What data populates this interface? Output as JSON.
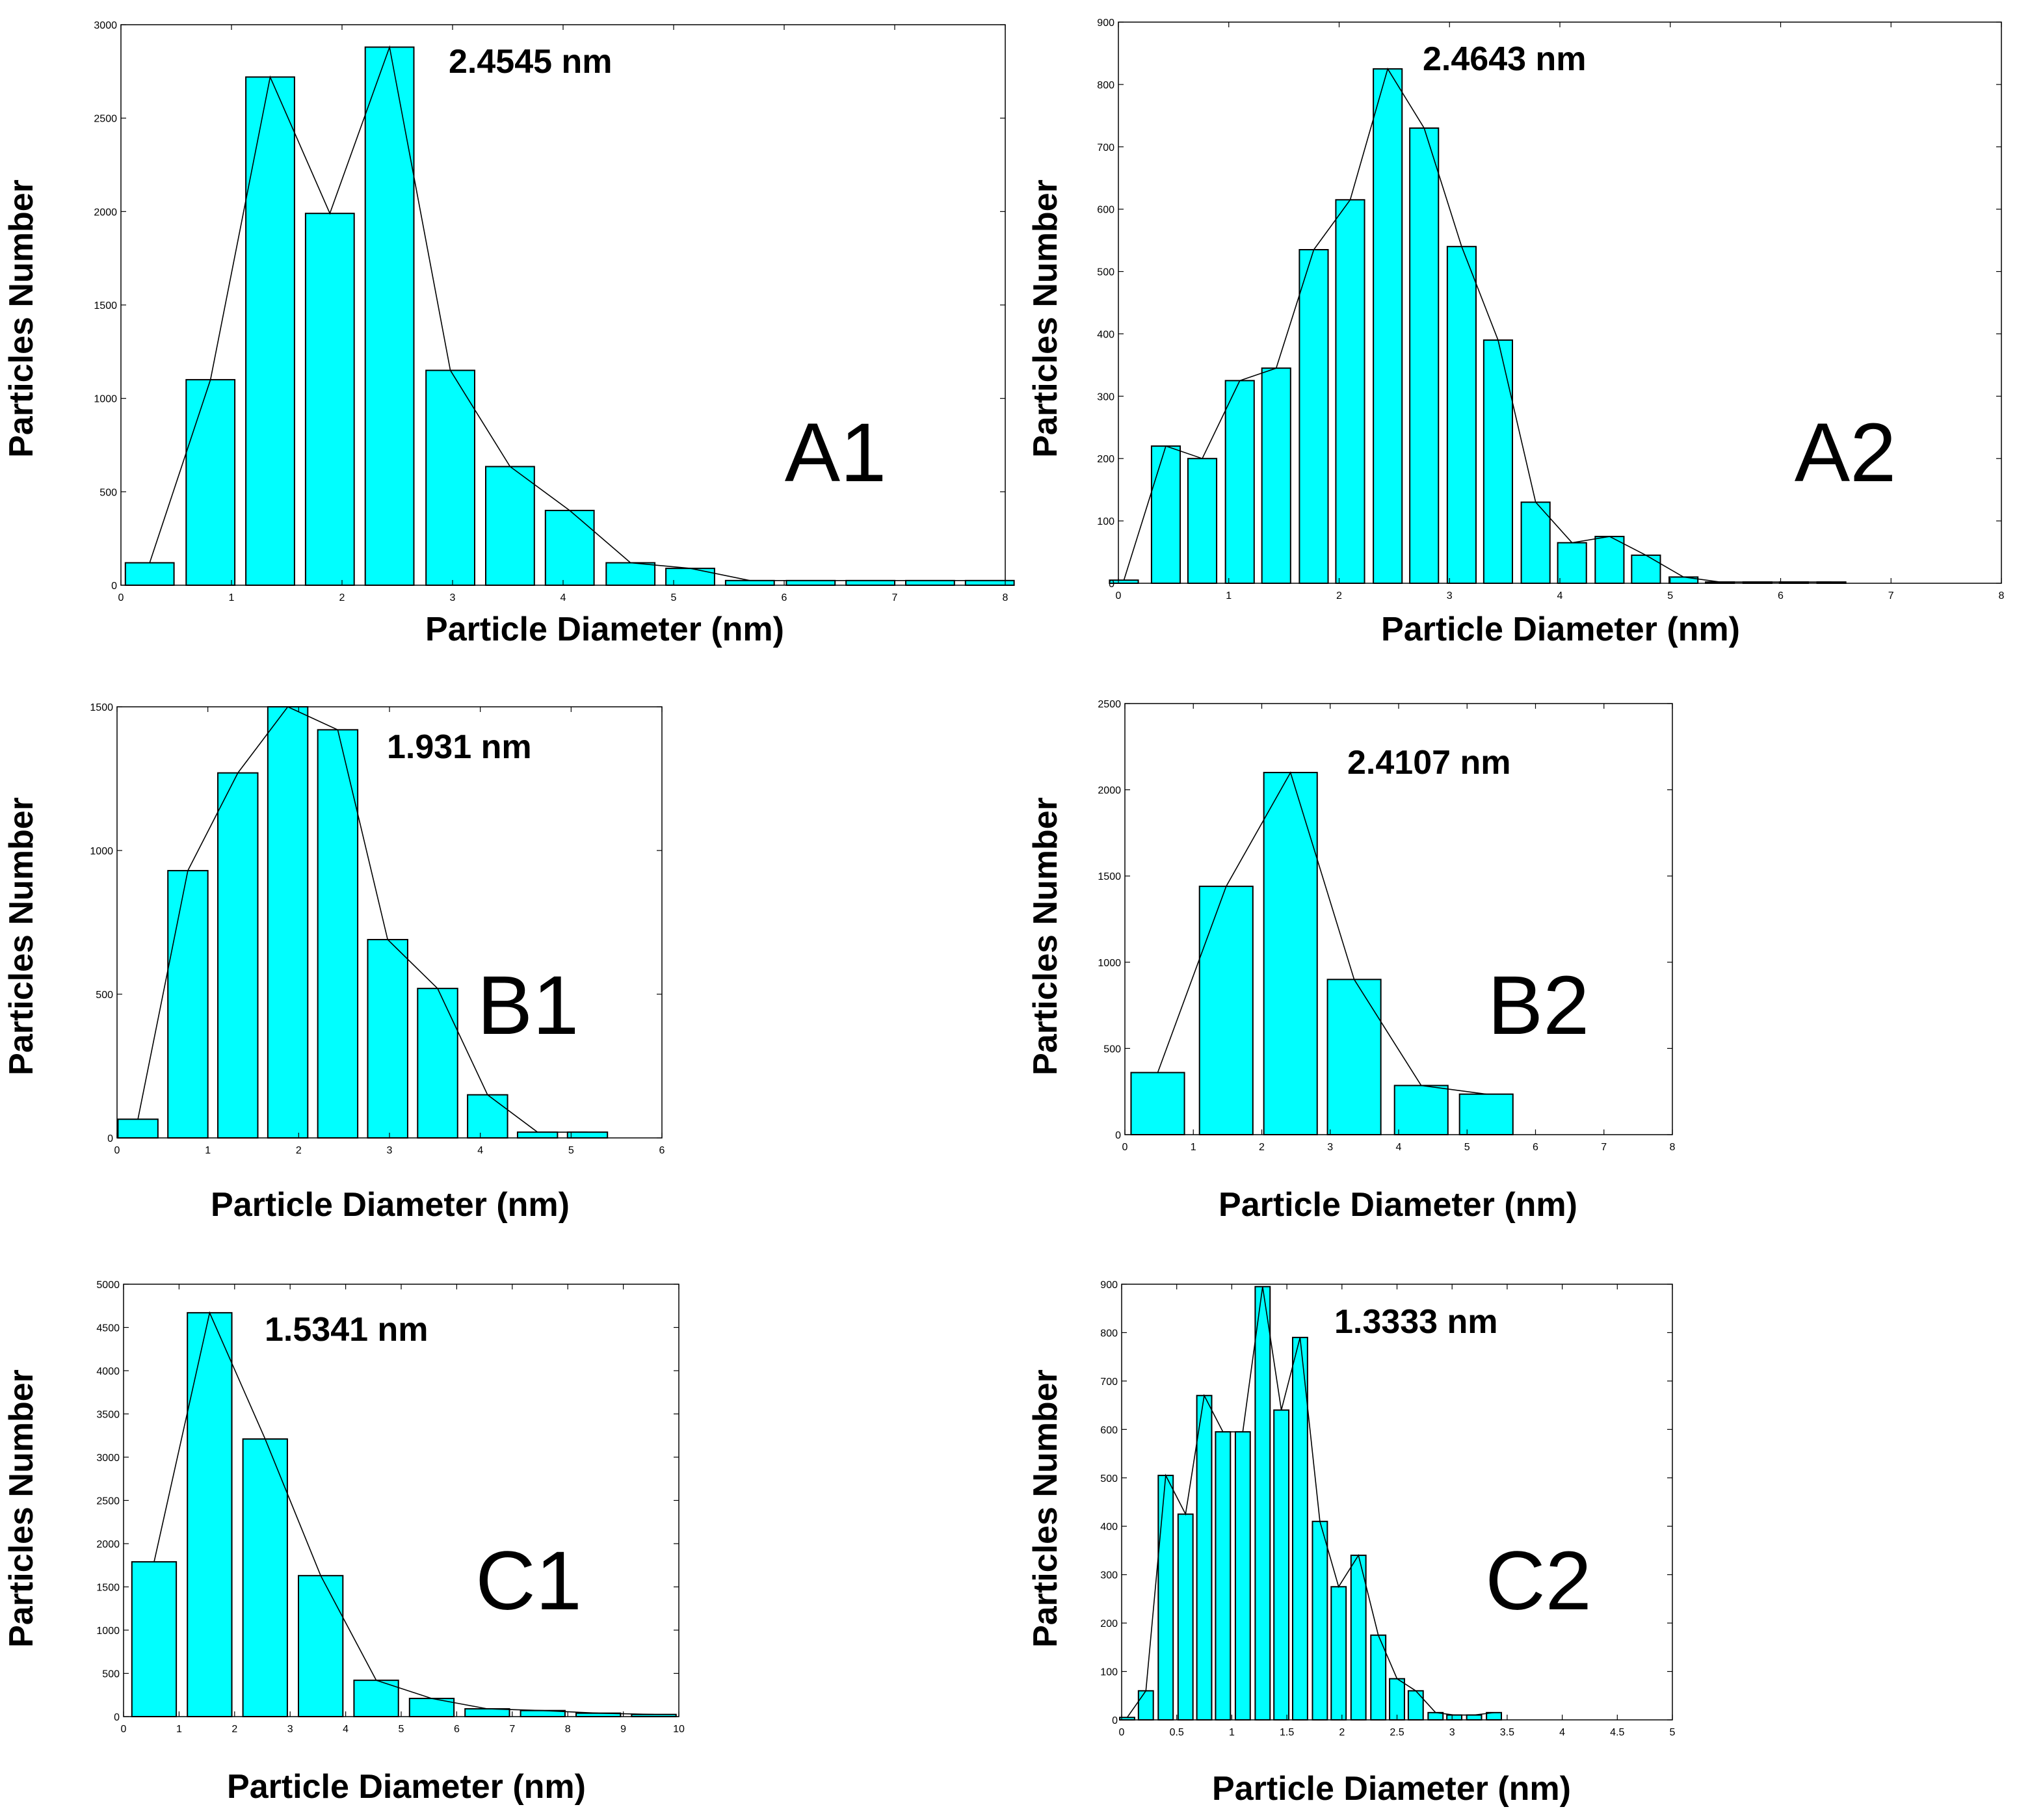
{
  "figure": {
    "bar_color": "#00FFFF",
    "edge_color": "#000000",
    "line_color": "#000000"
  },
  "chart_data": [
    {
      "type": "bar",
      "panel": "A1",
      "annotation": "2.4545 nm",
      "xlabel": "Particle Diameter (nm)",
      "ylabel": "Particles Number",
      "xlim": [
        0,
        8
      ],
      "ylim": [
        0,
        3000
      ],
      "xticks": [
        0,
        1,
        2,
        3,
        4,
        5,
        6,
        7,
        8
      ],
      "yticks": [
        0,
        500,
        1000,
        1500,
        2000,
        2500,
        3000
      ],
      "bar_width": 0.44,
      "x": [
        0.26,
        0.81,
        1.35,
        1.89,
        2.43,
        2.98,
        3.52,
        4.06,
        4.61,
        5.15,
        5.69,
        6.24,
        6.78,
        7.32,
        7.86
      ],
      "values": [
        120,
        1100,
        2720,
        1990,
        2880,
        1150,
        635,
        400,
        120,
        90,
        25,
        25,
        25,
        25,
        25
      ],
      "line": true
    },
    {
      "type": "bar",
      "panel": "A2",
      "annotation": "2.4643 nm",
      "xlabel": "Particle Diameter (nm)",
      "ylabel": "Particles Number",
      "xlim": [
        0,
        8
      ],
      "ylim": [
        0,
        900
      ],
      "xticks": [
        0,
        1,
        2,
        3,
        4,
        5,
        6,
        7,
        8
      ],
      "yticks": [
        0,
        100,
        200,
        300,
        400,
        500,
        600,
        700,
        800,
        900
      ],
      "bar_width": 0.26,
      "x": [
        0.05,
        0.43,
        0.76,
        1.1,
        1.43,
        1.77,
        2.1,
        2.44,
        2.77,
        3.11,
        3.44,
        3.78,
        4.11,
        4.45,
        4.78,
        5.12,
        5.45,
        5.79,
        6.12,
        6.46
      ],
      "values": [
        5,
        220,
        200,
        325,
        345,
        535,
        615,
        825,
        730,
        540,
        390,
        130,
        65,
        75,
        45,
        10,
        2,
        2,
        2,
        2
      ],
      "line": true
    },
    {
      "type": "bar",
      "panel": "B1",
      "annotation": "1.931 nm",
      "xlabel": "Particle Diameter (nm)",
      "ylabel": "Particles Number",
      "xlim": [
        0,
        6
      ],
      "ylim": [
        0,
        1500
      ],
      "xticks": [
        0,
        1,
        2,
        3,
        4,
        5,
        6
      ],
      "yticks": [
        0,
        500,
        1000,
        1500
      ],
      "bar_width": 0.44,
      "x": [
        0.23,
        0.78,
        1.33,
        1.88,
        2.43,
        2.98,
        3.53,
        4.08,
        4.63,
        5.18
      ],
      "values": [
        65,
        930,
        1270,
        1500,
        1420,
        690,
        520,
        150,
        20,
        20
      ],
      "line": true
    },
    {
      "type": "bar",
      "panel": "B2",
      "annotation": "2.4107 nm",
      "xlabel": "Particle Diameter (nm)",
      "ylabel": "Particles Number",
      "xlim": [
        0,
        8
      ],
      "ylim": [
        0,
        2500
      ],
      "xticks": [
        0,
        1,
        2,
        3,
        4,
        5,
        6,
        7,
        8
      ],
      "yticks": [
        0,
        500,
        1000,
        1500,
        2000,
        2500
      ],
      "bar_width": 0.78,
      "x": [
        0.48,
        1.48,
        2.42,
        3.35,
        4.33,
        5.28
      ],
      "values": [
        360,
        1440,
        2100,
        900,
        285,
        235
      ],
      "line": true
    },
    {
      "type": "bar",
      "panel": "C1",
      "annotation": "1.5341 nm",
      "xlabel": "Particle Diameter (nm)",
      "ylabel": "Particles Number",
      "xlim": [
        0,
        10
      ],
      "ylim": [
        0,
        5000
      ],
      "xticks": [
        0,
        1,
        2,
        3,
        4,
        5,
        6,
        7,
        8,
        9,
        10
      ],
      "yticks": [
        0,
        500,
        1000,
        1500,
        2000,
        2500,
        3000,
        3500,
        4000,
        4500,
        5000
      ],
      "bar_width": 0.8,
      "x": [
        0.55,
        1.55,
        2.55,
        3.55,
        4.55,
        5.55,
        6.55,
        7.55,
        8.55,
        9.55
      ],
      "values": [
        1790,
        4670,
        3210,
        1630,
        420,
        210,
        90,
        70,
        40,
        25
      ],
      "line": true
    },
    {
      "type": "bar",
      "panel": "C2",
      "annotation": "1.3333 nm",
      "xlabel": "Particle Diameter (nm)",
      "ylabel": "Particles Number",
      "xlim": [
        0,
        5
      ],
      "ylim": [
        0,
        900
      ],
      "xticks": [
        0,
        0.5,
        1,
        1.5,
        2,
        2.5,
        3,
        3.5,
        4,
        4.5,
        5
      ],
      "yticks": [
        0,
        100,
        200,
        300,
        400,
        500,
        600,
        700,
        800,
        900
      ],
      "bar_width": 0.135,
      "x": [
        0.05,
        0.22,
        0.4,
        0.58,
        0.75,
        0.92,
        1.1,
        1.28,
        1.45,
        1.62,
        1.8,
        1.97,
        2.15,
        2.33,
        2.5,
        2.67,
        2.85,
        3.02,
        3.2,
        3.38
      ],
      "values": [
        5,
        60,
        505,
        425,
        670,
        595,
        595,
        895,
        640,
        790,
        410,
        275,
        340,
        175,
        85,
        60,
        15,
        10,
        10,
        15
      ],
      "line": true
    }
  ]
}
